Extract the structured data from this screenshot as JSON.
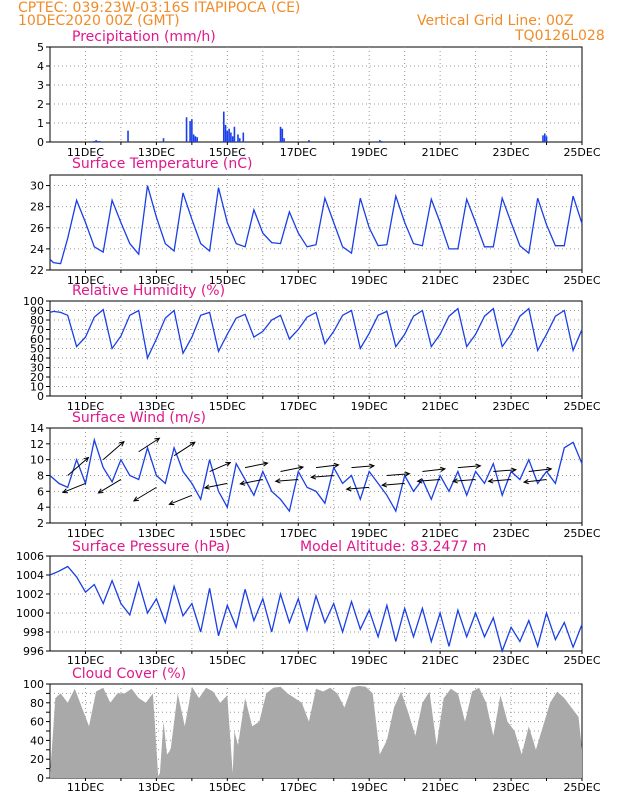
{
  "header": {
    "line1": "CPTEC:   039:23W-03:16S   ITAPIPOCA (CE)",
    "line2": "10DEC2020 00Z (GMT)",
    "vgrid": "Vertical Grid Line: 00Z",
    "code": "TQ0126L028"
  },
  "x_tick_labels": [
    "11DEC",
    "13DEC",
    "15DEC",
    "17DEC",
    "19DEC",
    "21DEC",
    "23DEC",
    "25DEC"
  ],
  "colors": {
    "line": "#1a3fe6",
    "bar": "#1a3fe6",
    "cloud": "#a9a9a9",
    "title": "#e0188c",
    "header": "#f08c28"
  },
  "chart_data": [
    {
      "type": "bar",
      "title": "Precipitation (mm/h)",
      "x_unit": "days since 10DEC2020 00Z",
      "ylim": [
        0,
        5
      ],
      "yticks": [
        0,
        1,
        2,
        3,
        4,
        5
      ],
      "grid": true,
      "x": [
        1.25,
        1.3,
        1.35,
        1.4,
        2.2,
        3.2,
        3.85,
        3.95,
        4.0,
        4.05,
        4.1,
        4.15,
        4.9,
        4.95,
        5.0,
        5.05,
        5.1,
        5.15,
        5.2,
        5.3,
        5.35,
        5.45,
        6.5,
        6.55,
        6.6,
        7.3,
        9.3,
        9.35,
        13.9,
        13.95,
        14.0
      ],
      "values": [
        0.05,
        0.1,
        0.05,
        0.05,
        0.6,
        0.2,
        1.3,
        1.1,
        1.2,
        0.4,
        0.3,
        0.25,
        1.6,
        0.9,
        0.6,
        0.7,
        0.5,
        0.3,
        0.8,
        0.4,
        0.2,
        0.5,
        0.8,
        0.7,
        0.2,
        0.1,
        0.1,
        0.05,
        0.35,
        0.45,
        0.3
      ]
    },
    {
      "type": "line",
      "title": "Surface Temperature (nC)",
      "ylim": [
        22,
        31
      ],
      "yticks": [
        22,
        24,
        26,
        28,
        30
      ],
      "grid": true,
      "x": [
        0,
        0.1,
        0.3,
        0.5,
        0.75,
        1.0,
        1.25,
        1.5,
        1.75,
        2.0,
        2.25,
        2.5,
        2.75,
        3.0,
        3.25,
        3.5,
        3.75,
        4.0,
        4.25,
        4.5,
        4.75,
        5.0,
        5.25,
        5.5,
        5.75,
        6.0,
        6.25,
        6.5,
        6.75,
        7.0,
        7.25,
        7.5,
        7.75,
        8.0,
        8.25,
        8.5,
        8.75,
        9.0,
        9.25,
        9.5,
        9.75,
        10.0,
        10.25,
        10.5,
        10.75,
        11.0,
        11.25,
        11.5,
        11.75,
        12.0,
        12.25,
        12.5,
        12.75,
        13.0,
        13.25,
        13.5,
        13.75,
        14.0,
        14.25,
        14.5,
        14.75,
        15.0
      ],
      "values": [
        23.0,
        22.7,
        22.6,
        25.0,
        28.6,
        26.5,
        24.2,
        23.7,
        28.6,
        26.5,
        24.5,
        23.5,
        30.0,
        27.0,
        24.5,
        23.8,
        29.3,
        26.8,
        24.5,
        23.8,
        29.8,
        26.5,
        24.5,
        24.2,
        27.7,
        25.5,
        24.6,
        24.5,
        27.5,
        25.5,
        24.2,
        24.4,
        28.8,
        26.5,
        24.2,
        23.6,
        28.8,
        26.0,
        24.3,
        24.4,
        29.0,
        26.5,
        24.5,
        24.3,
        28.7,
        26.5,
        24.0,
        24.0,
        28.7,
        26.5,
        24.2,
        24.2,
        28.8,
        26.5,
        24.3,
        23.6,
        28.8,
        26.3,
        24.3,
        24.3,
        29.0,
        26.4
      ]
    },
    {
      "type": "line",
      "title": "Relative Humidity (%)",
      "ylim": [
        0,
        100
      ],
      "yticks": [
        0,
        10,
        20,
        30,
        40,
        50,
        60,
        70,
        80,
        90,
        100
      ],
      "grid": true,
      "x": [
        0,
        0.1,
        0.3,
        0.5,
        0.75,
        1.0,
        1.25,
        1.5,
        1.75,
        2.0,
        2.25,
        2.5,
        2.75,
        3.0,
        3.25,
        3.5,
        3.75,
        4.0,
        4.25,
        4.5,
        4.75,
        5.0,
        5.25,
        5.5,
        5.75,
        6.0,
        6.25,
        6.5,
        6.75,
        7.0,
        7.25,
        7.5,
        7.75,
        8.0,
        8.25,
        8.5,
        8.75,
        9.0,
        9.25,
        9.5,
        9.75,
        10.0,
        10.25,
        10.5,
        10.75,
        11.0,
        11.25,
        11.5,
        11.75,
        12.0,
        12.25,
        12.5,
        12.75,
        13.0,
        13.25,
        13.5,
        13.75,
        14.0,
        14.25,
        14.5,
        14.75,
        15.0
      ],
      "values": [
        88,
        89,
        88,
        85,
        52,
        62,
        83,
        91,
        50,
        63,
        85,
        90,
        40,
        60,
        82,
        90,
        45,
        62,
        85,
        88,
        47,
        65,
        82,
        86,
        62,
        68,
        80,
        85,
        60,
        70,
        83,
        88,
        55,
        68,
        85,
        90,
        50,
        66,
        85,
        89,
        52,
        65,
        84,
        90,
        52,
        65,
        84,
        92,
        52,
        65,
        84,
        92,
        52,
        65,
        84,
        92,
        48,
        65,
        84,
        90,
        48,
        70
      ]
    },
    {
      "type": "line",
      "title": "Surface Wind (m/s)",
      "ylim": [
        2,
        14
      ],
      "yticks": [
        2,
        4,
        6,
        8,
        10,
        12,
        14
      ],
      "grid": true,
      "x": [
        0,
        0.25,
        0.5,
        0.75,
        1.0,
        1.25,
        1.5,
        1.75,
        2.0,
        2.25,
        2.5,
        2.75,
        3.0,
        3.25,
        3.5,
        3.75,
        4.0,
        4.25,
        4.5,
        4.75,
        5.0,
        5.25,
        5.5,
        5.75,
        6.0,
        6.25,
        6.5,
        6.75,
        7.0,
        7.25,
        7.5,
        7.75,
        8.0,
        8.25,
        8.5,
        8.75,
        9.0,
        9.25,
        9.5,
        9.75,
        10.0,
        10.25,
        10.5,
        10.75,
        11.0,
        11.25,
        11.5,
        11.75,
        12.0,
        12.25,
        12.5,
        12.75,
        13.0,
        13.25,
        13.5,
        13.75,
        14.0,
        14.25,
        14.5,
        14.75,
        15.0
      ],
      "values": [
        8.0,
        7.0,
        6.5,
        10.0,
        7.0,
        12.5,
        9.0,
        7.2,
        10.0,
        8.0,
        7.5,
        11.5,
        8.0,
        7.0,
        11.5,
        8.5,
        7.0,
        5.0,
        10.0,
        6.0,
        4.0,
        9.5,
        7.5,
        5.5,
        8.5,
        6.0,
        5.0,
        3.5,
        8.5,
        6.5,
        6.0,
        4.5,
        9.0,
        7.0,
        8.0,
        5.0,
        8.5,
        7.0,
        5.5,
        3.5,
        8.0,
        6.0,
        7.5,
        5.0,
        8.0,
        6.0,
        8.5,
        5.5,
        8.5,
        7.0,
        9.5,
        5.5,
        8.5,
        7.5,
        10.0,
        7.0,
        8.5,
        7.0,
        11.5,
        12.2,
        9.5
      ],
      "wind_barbs": {
        "x": [
          0.5,
          1.0,
          1.5,
          2.0,
          2.5,
          3.0,
          3.5,
          4.0,
          4.5,
          5.0,
          5.5,
          6.0,
          6.5,
          7.0,
          7.5,
          8.0,
          8.5,
          9.0,
          9.5,
          10.0,
          10.5,
          11.0,
          11.5,
          12.0,
          12.5,
          13.0,
          13.5,
          14.0
        ],
        "y": [
          8.0,
          7.0,
          10.0,
          7.5,
          11.0,
          6.5,
          10.5,
          5.5,
          8.5,
          7.0,
          9.0,
          7.5,
          8.5,
          7.5,
          9.0,
          8.0,
          9.0,
          6.5,
          8.0,
          7.0,
          8.5,
          7.5,
          9.0,
          7.5,
          8.5,
          7.5,
          8.5,
          7.5
        ],
        "u": [
          2.3,
          -2.5,
          2.3,
          -2.5,
          2.3,
          -2.5,
          2.3,
          -2.5,
          2.3,
          -2.5,
          2.5,
          -2.5,
          2.5,
          -2.5,
          2.5,
          -2.5,
          2.5,
          -2.5,
          2.5,
          -2.5,
          2.5,
          -2.5,
          2.5,
          -2.5,
          2.5,
          -2.5,
          2.5,
          -2.5
        ],
        "v": [
          2.0,
          -1.0,
          2.0,
          -1.5,
          1.5,
          -1.5,
          1.5,
          -1.0,
          1.0,
          -0.5,
          0.5,
          -0.5,
          0.5,
          -0.2,
          0.3,
          -0.2,
          0.2,
          -0.2,
          0.2,
          -0.2,
          0.3,
          -0.2,
          0.2,
          -0.2,
          0.2,
          -0.2,
          0.3,
          -0.3
        ]
      }
    },
    {
      "type": "line",
      "title": "Surface Pressure (hPa)",
      "annotation": "Model Altitude: 83.2477 m",
      "ylim": [
        996,
        1006
      ],
      "yticks": [
        996,
        998,
        1000,
        1002,
        1004,
        1006
      ],
      "grid": true,
      "x": [
        0,
        0.25,
        0.5,
        0.75,
        1.0,
        1.25,
        1.5,
        1.75,
        2.0,
        2.25,
        2.5,
        2.75,
        3.0,
        3.25,
        3.5,
        3.75,
        4.0,
        4.25,
        4.5,
        4.75,
        5.0,
        5.25,
        5.5,
        5.75,
        6.0,
        6.25,
        6.5,
        6.75,
        7.0,
        7.25,
        7.5,
        7.75,
        8.0,
        8.25,
        8.5,
        8.75,
        9.0,
        9.25,
        9.5,
        9.75,
        10.0,
        10.25,
        10.5,
        10.75,
        11.0,
        11.25,
        11.5,
        11.75,
        12.0,
        12.25,
        12.5,
        12.75,
        13.0,
        13.25,
        13.5,
        13.75,
        14.0,
        14.25,
        14.5,
        14.75,
        15.0
      ],
      "values": [
        1004.0,
        1004.4,
        1004.9,
        1003.8,
        1002.2,
        1003.0,
        1001.0,
        1003.4,
        1001.0,
        999.8,
        1003.2,
        1000.0,
        1001.5,
        999.0,
        1002.8,
        999.7,
        1001.0,
        998.0,
        1002.6,
        997.6,
        1000.8,
        998.5,
        1002.5,
        999.2,
        1001.5,
        998.0,
        1002.0,
        999.0,
        1001.5,
        998.2,
        1001.8,
        999.0,
        1001.0,
        998.0,
        1001.2,
        998.3,
        1000.3,
        997.5,
        1000.8,
        997.0,
        1000.5,
        997.5,
        1000.5,
        997.0,
        1000.0,
        996.5,
        1000.3,
        997.5,
        1000.0,
        997.5,
        999.5,
        996.0,
        998.5,
        997.0,
        999.2,
        996.5,
        1000.0,
        997.2,
        999.0,
        996.4,
        998.8
      ]
    },
    {
      "type": "area",
      "title": "Cloud Cover (%)",
      "ylim": [
        0,
        100
      ],
      "yticks": [
        0,
        10,
        20,
        30,
        40,
        50,
        60,
        70,
        80,
        90,
        100
      ],
      "grid": true,
      "x": [
        0,
        0.05,
        0.15,
        0.3,
        0.5,
        0.7,
        0.9,
        1.1,
        1.3,
        1.5,
        1.7,
        1.9,
        2.1,
        2.3,
        2.5,
        2.7,
        2.9,
        3.05,
        3.1,
        3.2,
        3.3,
        3.4,
        3.6,
        3.8,
        4.0,
        4.2,
        4.4,
        4.6,
        4.8,
        5.0,
        5.15,
        5.2,
        5.3,
        5.5,
        5.7,
        5.9,
        6.1,
        6.3,
        6.5,
        6.7,
        6.9,
        7.1,
        7.3,
        7.5,
        7.7,
        7.9,
        8.1,
        8.3,
        8.5,
        8.7,
        8.9,
        9.1,
        9.3,
        9.5,
        9.7,
        9.9,
        10.1,
        10.3,
        10.5,
        10.7,
        10.9,
        11.1,
        11.3,
        11.5,
        11.7,
        11.9,
        12.1,
        12.3,
        12.5,
        12.7,
        12.9,
        13.1,
        13.3,
        13.5,
        13.7,
        13.9,
        14.1,
        14.3,
        14.5,
        14.7,
        14.9,
        15.0
      ],
      "values": [
        5,
        30,
        85,
        90,
        80,
        95,
        75,
        55,
        92,
        96,
        80,
        90,
        90,
        95,
        85,
        80,
        90,
        2,
        5,
        60,
        25,
        30,
        90,
        55,
        97,
        85,
        96,
        92,
        80,
        88,
        5,
        50,
        35,
        85,
        55,
        60,
        90,
        96,
        97,
        90,
        85,
        80,
        60,
        95,
        92,
        96,
        90,
        75,
        96,
        98,
        97,
        90,
        25,
        40,
        75,
        92,
        70,
        45,
        80,
        92,
        35,
        85,
        95,
        90,
        60,
        92,
        96,
        80,
        45,
        88,
        60,
        50,
        25,
        55,
        30,
        55,
        80,
        92,
        85,
        75,
        65,
        30
      ]
    }
  ]
}
